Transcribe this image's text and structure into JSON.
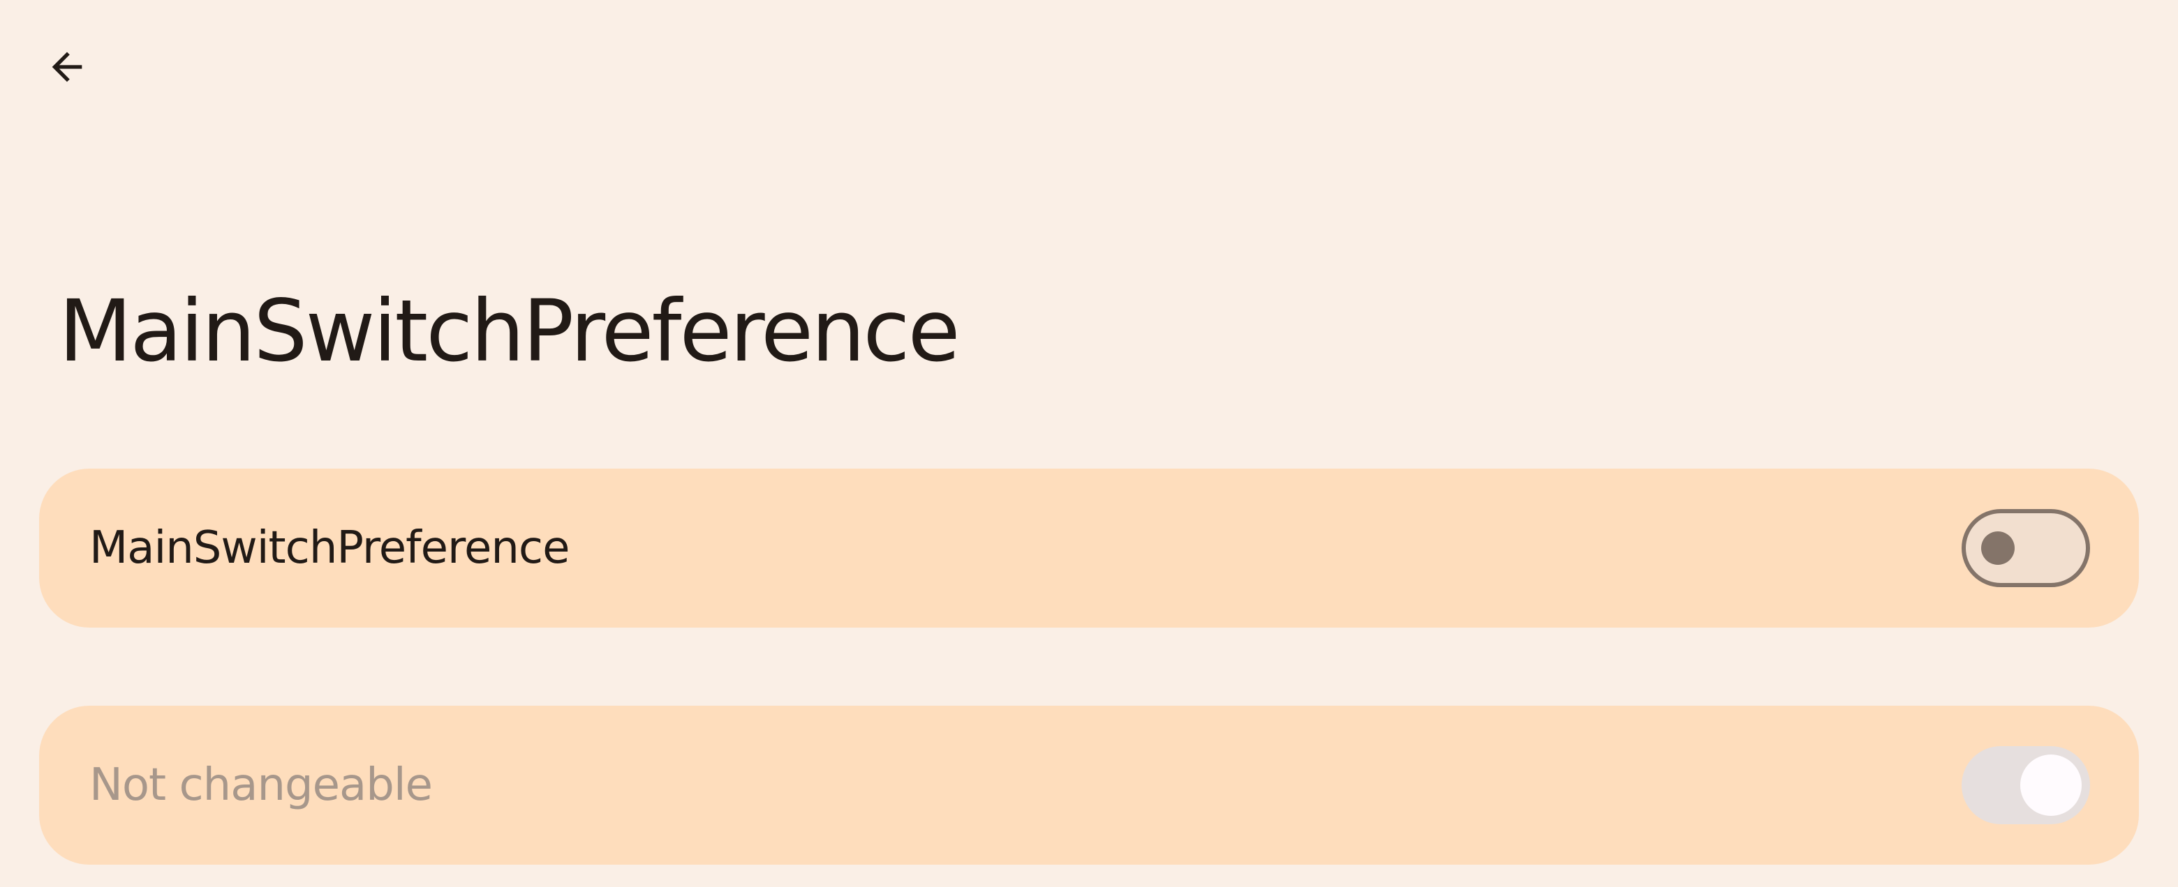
{
  "toolbar": {
    "back_icon": "arrow-back-icon"
  },
  "header": {
    "title": "MainSwitchPreference"
  },
  "preferences": [
    {
      "label": "MainSwitchPreference",
      "enabled": true,
      "checked": false
    },
    {
      "label": "Not changeable",
      "enabled": false,
      "checked": true
    }
  ],
  "colors": {
    "background": "#FAEFE6",
    "card": "#FEDDBC",
    "text_primary": "#211A16",
    "text_disabled": "#A7978B",
    "switch_outline": "#847469"
  }
}
